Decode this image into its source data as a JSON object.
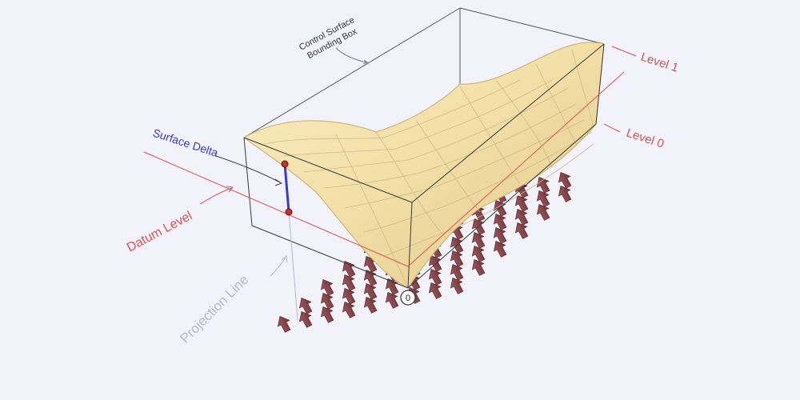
{
  "labels": {
    "bounding_box": [
      "Control Surface",
      "Bounding Box"
    ],
    "level_1": "Level 1",
    "level_0": "Level 0",
    "surface_delta": "Surface Delta",
    "datum_level": "Datum Level",
    "projection_line": "Projection Line",
    "origin_marker": "0"
  },
  "colors": {
    "background": "#f1f2fa",
    "datum_red": "#d9534f",
    "label_red": "#cc5555",
    "delta_blue": "#3a3ac8",
    "projection_gray": "#b4b8c8",
    "surface_fill": "#f2dfa6",
    "box_line": "#3a3a3a",
    "arrow_fill": "#8e4a4e"
  },
  "icons": [
    "direction-arrow-icon",
    "origin-marker-icon",
    "control-point-icon"
  ]
}
